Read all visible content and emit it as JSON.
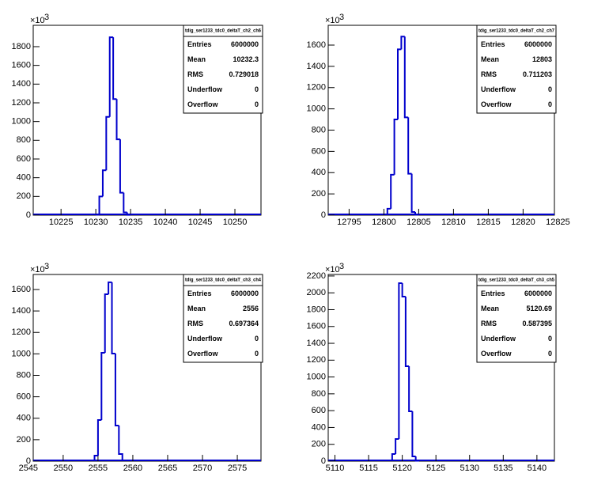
{
  "chart_data": [
    {
      "type": "histogram",
      "title": "tdig_ser1233_tdc0_deltaT_ch2_ch6",
      "color": "#0000cc",
      "bins": [
        10230,
        10230.5,
        10231,
        10231.5,
        10232,
        10232.5,
        10233,
        10233.5,
        10234,
        10234.5,
        10235
      ],
      "values": [
        5,
        200,
        480,
        1050,
        1900,
        1240,
        810,
        240,
        30,
        3
      ],
      "xlim": [
        10221,
        10253.75
      ],
      "xticks": [
        10225,
        10230,
        10235,
        10240,
        10245,
        10250
      ],
      "ylim": [
        0,
        2028
      ],
      "yticks": [
        0,
        200,
        400,
        600,
        800,
        1000,
        1200,
        1400,
        1600,
        1800
      ],
      "y_multiplier": "×10",
      "y_exponent": "3",
      "stats": [
        {
          "label": "Entries",
          "value": 6000000
        },
        {
          "label": "Mean",
          "value": 10232.3
        },
        {
          "label": "RMS",
          "value": 0.729018
        },
        {
          "label": "Underflow",
          "value": 0
        },
        {
          "label": "Overflow",
          "value": 0
        }
      ]
    },
    {
      "type": "histogram",
      "title": "tdig_ser1233_tdc0_deltaT_ch2_ch7",
      "color": "#0000cc",
      "bins": [
        12800.5,
        12801,
        12801.5,
        12802,
        12802.5,
        12803,
        12803.5,
        12804,
        12804.5,
        12805
      ],
      "values": [
        60,
        380,
        900,
        1560,
        1680,
        920,
        390,
        30,
        5
      ],
      "xlim": [
        12792,
        12824.5
      ],
      "xticks": [
        12795,
        12800,
        12805,
        12810,
        12815,
        12820,
        12825
      ],
      "ylim": [
        0,
        1786
      ],
      "yticks": [
        0,
        200,
        400,
        600,
        800,
        1000,
        1200,
        1400,
        1600
      ],
      "y_multiplier": "×10",
      "y_exponent": "3",
      "stats": [
        {
          "label": "Entries",
          "value": 6000000
        },
        {
          "label": "Mean",
          "value": 12803
        },
        {
          "label": "RMS",
          "value": 0.711203
        },
        {
          "label": "Underflow",
          "value": 0
        },
        {
          "label": "Overflow",
          "value": 0
        }
      ]
    },
    {
      "type": "histogram",
      "title": "tdig_ser1233_tdc0_deltaT_ch3_ch4",
      "color": "#0000cc",
      "bins": [
        2554.5,
        2555,
        2555.5,
        2556,
        2556.5,
        2557,
        2557.5,
        2558,
        2558.5
      ],
      "values": [
        52,
        383,
        1010,
        1556,
        1667,
        1003,
        332,
        66
      ],
      "xlim": [
        2545.7,
        2578.4
      ],
      "xticks": [
        2545,
        2550,
        2555,
        2560,
        2565,
        2570,
        2575
      ],
      "ylim": [
        0,
        1740
      ],
      "yticks": [
        0,
        200,
        400,
        600,
        800,
        1000,
        1200,
        1400,
        1600
      ],
      "y_multiplier": "×10",
      "y_exponent": "3",
      "stats": [
        {
          "label": "Entries",
          "value": 6000000
        },
        {
          "label": "Mean",
          "value": 2556
        },
        {
          "label": "RMS",
          "value": 0.697364
        },
        {
          "label": "Underflow",
          "value": 0
        },
        {
          "label": "Overflow",
          "value": 0
        }
      ]
    },
    {
      "type": "histogram",
      "title": "tdig_ser1233_tdc0_deltaT_ch3_ch5",
      "color": "#0000cc",
      "bins": [
        5118.5,
        5119,
        5119.5,
        5120,
        5120.5,
        5121,
        5121.5,
        5122,
        5122.5
      ],
      "values": [
        85,
        263,
        2115,
        1955,
        1128,
        592,
        56,
        5
      ],
      "xlim": [
        5109,
        5142.6
      ],
      "xticks": [
        5110,
        5115,
        5120,
        5125,
        5130,
        5135,
        5140
      ],
      "ylim": [
        0,
        2218
      ],
      "yticks": [
        0,
        200,
        400,
        600,
        800,
        1000,
        1200,
        1400,
        1600,
        1800,
        2000,
        2200
      ],
      "y_multiplier": "×10",
      "y_exponent": "3",
      "stats": [
        {
          "label": "Entries",
          "value": 6000000
        },
        {
          "label": "Mean",
          "value": 5120.69
        },
        {
          "label": "RMS",
          "value": 0.587395
        },
        {
          "label": "Underflow",
          "value": 0
        },
        {
          "label": "Overflow",
          "value": 0
        }
      ]
    }
  ]
}
